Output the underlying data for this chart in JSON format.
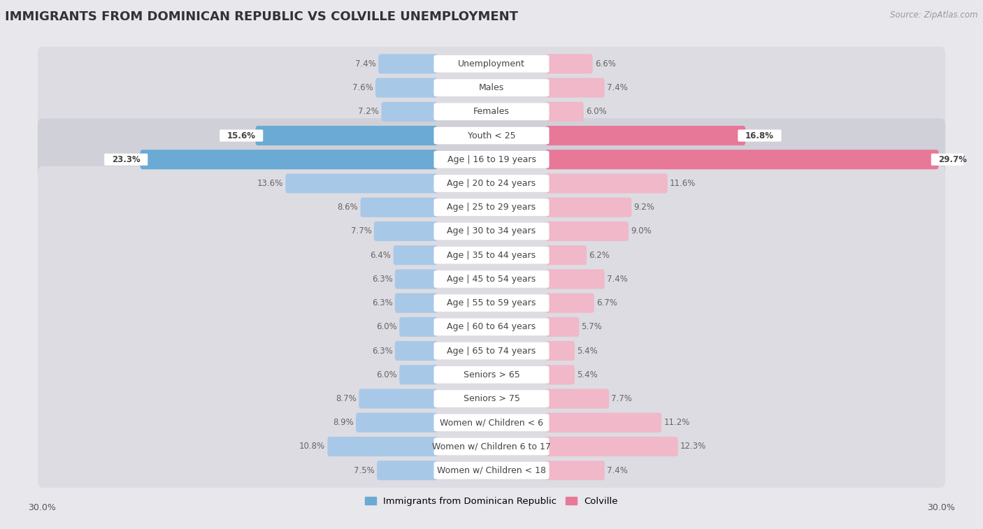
{
  "title": "IMMIGRANTS FROM DOMINICAN REPUBLIC VS COLVILLE UNEMPLOYMENT",
  "source": "Source: ZipAtlas.com",
  "categories": [
    "Unemployment",
    "Males",
    "Females",
    "Youth < 25",
    "Age | 16 to 19 years",
    "Age | 20 to 24 years",
    "Age | 25 to 29 years",
    "Age | 30 to 34 years",
    "Age | 35 to 44 years",
    "Age | 45 to 54 years",
    "Age | 55 to 59 years",
    "Age | 60 to 64 years",
    "Age | 65 to 74 years",
    "Seniors > 65",
    "Seniors > 75",
    "Women w/ Children < 6",
    "Women w/ Children 6 to 17",
    "Women w/ Children < 18"
  ],
  "left_values": [
    7.4,
    7.6,
    7.2,
    15.6,
    23.3,
    13.6,
    8.6,
    7.7,
    6.4,
    6.3,
    6.3,
    6.0,
    6.3,
    6.0,
    8.7,
    8.9,
    10.8,
    7.5
  ],
  "right_values": [
    6.6,
    7.4,
    6.0,
    16.8,
    29.7,
    11.6,
    9.2,
    9.0,
    6.2,
    7.4,
    6.7,
    5.7,
    5.4,
    5.4,
    7.7,
    11.2,
    12.3,
    7.4
  ],
  "left_color": "#a8c8e8",
  "right_color": "#f0b8c8",
  "highlight_left_color": "#6aaad4",
  "highlight_right_color": "#e87898",
  "highlight_rows": [
    3,
    4
  ],
  "xlim": 30.0,
  "bg_color": "#e8e8ec",
  "row_bg_color": "#d8d8de",
  "bar_row_bg_color": "#e0e0e6",
  "legend_left": "Immigrants from Dominican Republic",
  "legend_right": "Colville",
  "title_fontsize": 13,
  "label_fontsize": 9.0,
  "value_fontsize": 8.5
}
